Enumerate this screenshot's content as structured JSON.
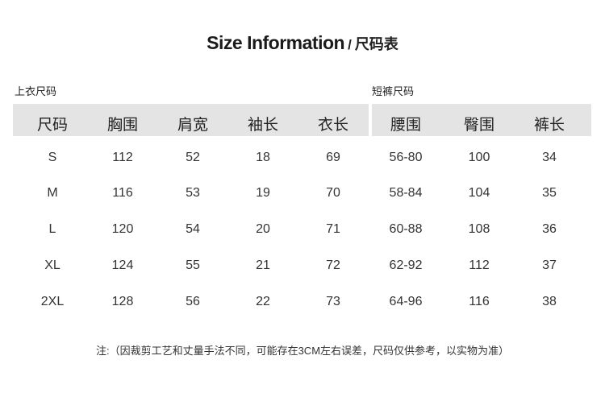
{
  "title": {
    "en": "Size Information",
    "separator": "/",
    "cn": "尺码表"
  },
  "top_table": {
    "label": "上衣尺码",
    "headers": [
      "尺码",
      "胸围",
      "肩宽",
      "袖长",
      "衣长"
    ],
    "rows": [
      [
        "S",
        "112",
        "52",
        "18",
        "69"
      ],
      [
        "M",
        "116",
        "53",
        "19",
        "70"
      ],
      [
        "L",
        "120",
        "54",
        "20",
        "71"
      ],
      [
        "XL",
        "124",
        "55",
        "21",
        "72"
      ],
      [
        "2XL",
        "128",
        "56",
        "22",
        "73"
      ]
    ]
  },
  "shorts_table": {
    "label": "短裤尺码",
    "headers": [
      "腰围",
      "臀围",
      "裤长"
    ],
    "rows": [
      [
        "56-80",
        "100",
        "34"
      ],
      [
        "58-84",
        "104",
        "35"
      ],
      [
        "60-88",
        "108",
        "36"
      ],
      [
        "62-92",
        "112",
        "37"
      ],
      [
        "64-96",
        "116",
        "38"
      ]
    ]
  },
  "note": "注:（因裁剪工艺和丈量手法不同，可能存在3CM左右误差，尺码仅供参考，以实物为准）",
  "colors": {
    "header_bg": "#e4e4e4",
    "text": "#222222"
  }
}
